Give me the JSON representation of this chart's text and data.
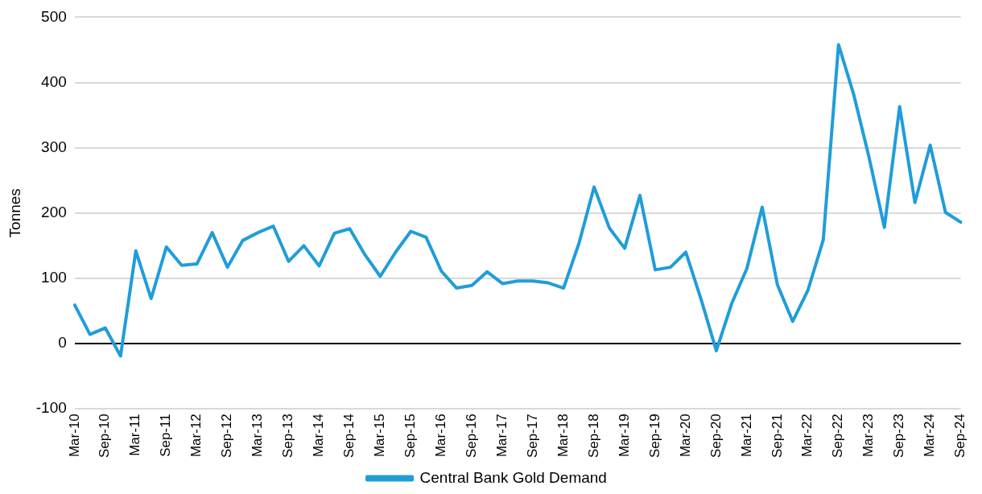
{
  "chart_data": {
    "type": "line",
    "ylabel": "Tonnes",
    "categories": [
      "Mar-10",
      null,
      "Sep-10",
      null,
      "Mar-11",
      null,
      "Sep-11",
      null,
      "Mar-12",
      null,
      "Sep-12",
      null,
      "Mar-13",
      null,
      "Sep-13",
      null,
      "Mar-14",
      null,
      "Sep-14",
      null,
      "Mar-15",
      null,
      "Sep-15",
      null,
      "Mar-16",
      null,
      "Sep-16",
      null,
      "Mar-17",
      null,
      "Sep-17",
      null,
      "Mar-18",
      null,
      "Sep-18",
      null,
      "Mar-19",
      null,
      "Sep-19",
      null,
      "Mar-20",
      null,
      "Sep-20",
      null,
      "Mar-21",
      null,
      "Sep-21",
      null,
      "Mar-22",
      null,
      "Sep-22",
      null,
      "Mar-23",
      null,
      "Sep-23",
      null,
      "Mar-24",
      null,
      "Sep-24"
    ],
    "series": [
      {
        "name": "Central Bank Gold Demand",
        "color": "#209dd9",
        "values": [
          59,
          14,
          24,
          -19,
          142,
          69,
          148,
          120,
          122,
          170,
          117,
          158,
          170,
          180,
          126,
          150,
          119,
          169,
          176,
          136,
          103,
          140,
          172,
          163,
          111,
          85,
          89,
          110,
          92,
          96,
          96,
          93,
          85,
          153,
          240,
          177,
          146,
          227,
          113,
          117,
          140,
          68,
          -11,
          61,
          115,
          209,
          90,
          34,
          82,
          159,
          458,
          381,
          285,
          178,
          363,
          216,
          304,
          201,
          186
        ]
      }
    ],
    "ylim": [
      -100,
      500
    ],
    "yticks": [
      -100,
      0,
      100,
      200,
      300,
      400,
      500
    ],
    "grid": "y",
    "legend": "bottom",
    "marker": "none",
    "line_style": "solid"
  }
}
